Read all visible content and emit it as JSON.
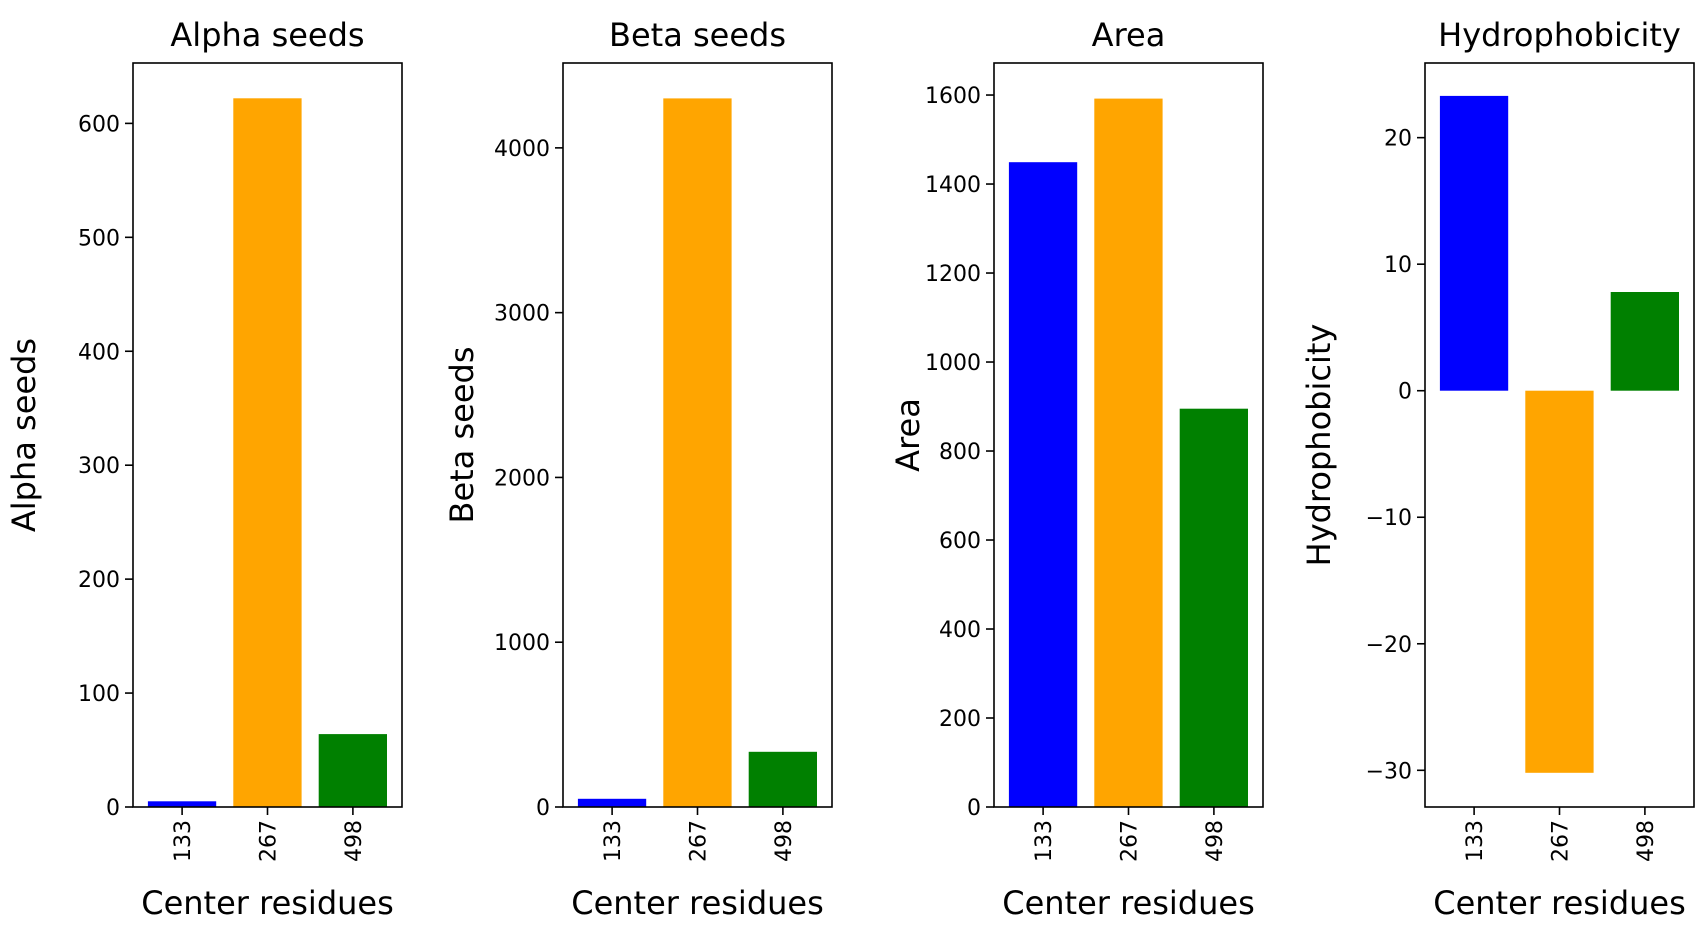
{
  "chart_data": [
    {
      "type": "bar",
      "title": "Alpha seeds",
      "xlabel": "Center residues",
      "ylabel": "Alpha seeds",
      "categories": [
        "133",
        "267",
        "498"
      ],
      "values": [
        5,
        622,
        64
      ],
      "colors": [
        "#0000ff",
        "#ffa500",
        "#008000"
      ],
      "ylim": [
        0,
        653
      ],
      "yticks": [
        0,
        100,
        200,
        300,
        400,
        500,
        600
      ],
      "ytick_labels": [
        "0",
        "100",
        "200",
        "300",
        "400",
        "500",
        "600"
      ],
      "grid": false,
      "legend": "none"
    },
    {
      "type": "bar",
      "title": "Beta seeds",
      "xlabel": "Center residues",
      "ylabel": "Beta seeds",
      "categories": [
        "133",
        "267",
        "498"
      ],
      "values": [
        50,
        4300,
        335
      ],
      "colors": [
        "#0000ff",
        "#ffa500",
        "#008000"
      ],
      "ylim": [
        0,
        4515
      ],
      "yticks": [
        0,
        1000,
        2000,
        3000,
        4000
      ],
      "ytick_labels": [
        "0",
        "1000",
        "2000",
        "3000",
        "4000"
      ],
      "grid": false,
      "legend": "none"
    },
    {
      "type": "bar",
      "title": "Area",
      "xlabel": "Center residues",
      "ylabel": "Area",
      "categories": [
        "133",
        "267",
        "498"
      ],
      "values": [
        1449,
        1592,
        895
      ],
      "colors": [
        "#0000ff",
        "#ffa500",
        "#008000"
      ],
      "ylim": [
        0,
        1672
      ],
      "yticks": [
        0,
        200,
        400,
        600,
        800,
        1000,
        1200,
        1400,
        1600
      ],
      "ytick_labels": [
        "0",
        "200",
        "400",
        "600",
        "800",
        "1000",
        "1200",
        "1400",
        "1600"
      ],
      "grid": false,
      "legend": "none"
    },
    {
      "type": "bar",
      "title": "Hydrophobicity",
      "xlabel": "Center residues",
      "ylabel": "Hydrophobicity",
      "categories": [
        "133",
        "267",
        "498"
      ],
      "values": [
        23.3,
        -30.2,
        7.8
      ],
      "colors": [
        "#0000ff",
        "#ffa500",
        "#008000"
      ],
      "ylim": [
        -32.9,
        25.9
      ],
      "yticks": [
        -30,
        -20,
        -10,
        0,
        10,
        20
      ],
      "ytick_labels": [
        "−30",
        "−20",
        "−10",
        "0",
        "10",
        "20"
      ],
      "grid": false,
      "legend": "none"
    }
  ]
}
